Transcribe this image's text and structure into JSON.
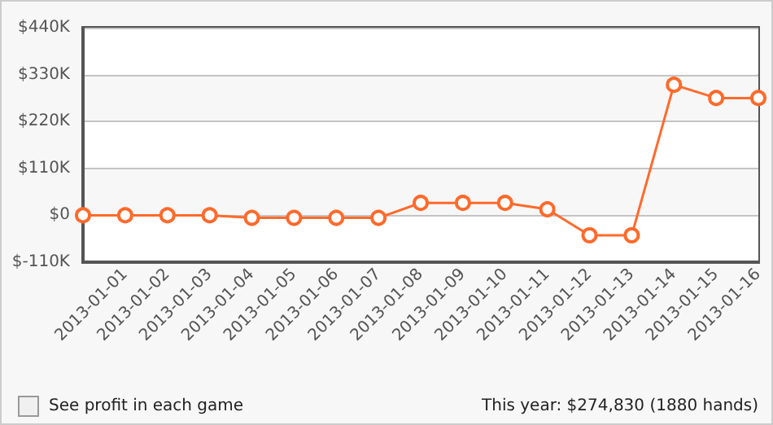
{
  "chart_data": {
    "type": "line",
    "categories": [
      null,
      "2013-01-01",
      "2013-01-02",
      "2013-01-03",
      "2013-01-04",
      "2013-01-05",
      "2013-01-06",
      "2013-01-07",
      "2013-01-08",
      "2013-01-09",
      "2013-01-10",
      "2013-01-11",
      "2013-01-12",
      "2013-01-13",
      "2013-01-14",
      "2013-01-15",
      "2013-01-16"
    ],
    "series": [
      {
        "color": "#ff6a2b",
        "values": [
          0,
          0,
          0,
          0,
          -6000,
          -6000,
          -6000,
          -6000,
          29000,
          29000,
          29000,
          14000,
          -47000,
          -47000,
          306000,
          275000,
          275000
        ]
      }
    ],
    "ylim": [
      -110000,
      440000
    ],
    "yticks": [
      {
        "value": -110000,
        "label": "$-110K"
      },
      {
        "value": 0,
        "label": "$0"
      },
      {
        "value": 110000,
        "label": "$110K"
      },
      {
        "value": 220000,
        "label": "$220K"
      },
      {
        "value": 330000,
        "label": "$330K"
      },
      {
        "value": 440000,
        "label": "$440K"
      }
    ],
    "grid": "y",
    "marker": "circle",
    "line_style": "solid",
    "annotations": [
      "See profit in each game",
      "This year: $274,830 (1880 hands)"
    ]
  }
}
